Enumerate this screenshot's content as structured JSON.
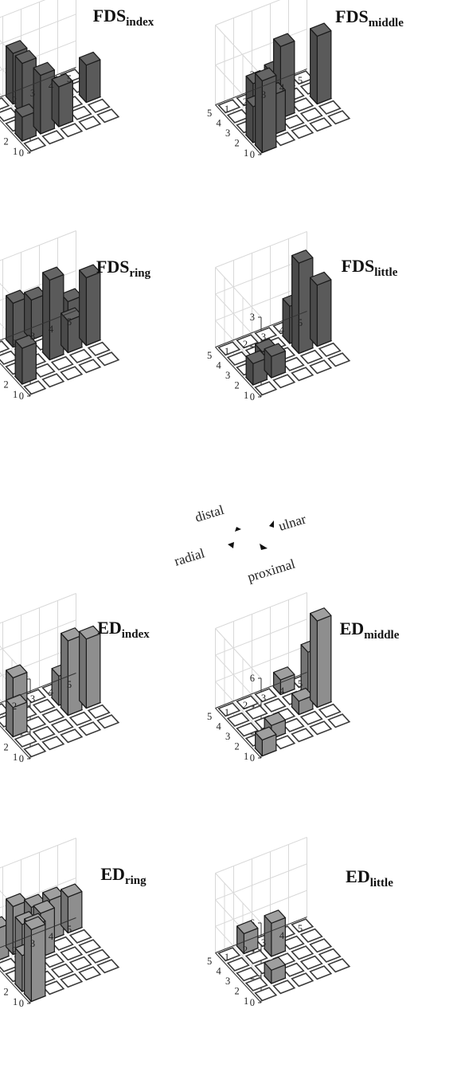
{
  "orientation": {
    "distal": "distal",
    "ulnar": "ulnar",
    "radial": "radial",
    "proximal": "proximal"
  },
  "chart_data": [
    {
      "type": "bar3d",
      "title": "FDS",
      "subtitle": "index",
      "ylim": [
        0,
        3
      ],
      "zticks": [
        "0",
        "1",
        "2",
        "3"
      ],
      "rows": [
        "1",
        "2",
        "3",
        "4",
        "5"
      ],
      "cols": [
        "1",
        "2",
        "3",
        "4",
        "5"
      ],
      "bar_color": "#5a5a5a",
      "values": [
        [
          0,
          0,
          0,
          0,
          0
        ],
        [
          0.9,
          2.2,
          1.5,
          0,
          0
        ],
        [
          0,
          0,
          0,
          0,
          1.4
        ],
        [
          0,
          1.9,
          0,
          0,
          0
        ],
        [
          0,
          1.9,
          0,
          0,
          0
        ]
      ]
    },
    {
      "type": "bar3d",
      "title": "FDS",
      "subtitle": "middle",
      "ylim": [
        0,
        2
      ],
      "zticks": [
        "0",
        "1",
        "2"
      ],
      "rows": [
        "1",
        "2",
        "3",
        "4",
        "5"
      ],
      "cols": [
        "1",
        "2",
        "3",
        "4",
        "5"
      ],
      "bar_color": "#5a5a5a",
      "values": [
        [
          1.8,
          0,
          0,
          0,
          0
        ],
        [
          0.9,
          1.0,
          0,
          0,
          0
        ],
        [
          0,
          1.1,
          1.8,
          0,
          1.7
        ],
        [
          0,
          0.8,
          0.9,
          0,
          0
        ],
        [
          0,
          0,
          0,
          0,
          0
        ]
      ]
    },
    {
      "type": "bar3d",
      "title": "FDS",
      "subtitle": "ring",
      "ylim": [
        0,
        2
      ],
      "zticks": [
        "0",
        "1",
        "2"
      ],
      "rows": [
        "1",
        "2",
        "3",
        "4",
        "5"
      ],
      "cols": [
        "1",
        "2",
        "3",
        "4",
        "5"
      ],
      "bar_color": "#5a5a5a",
      "values": [
        [
          0,
          0,
          0,
          0,
          0
        ],
        [
          0.9,
          0,
          0,
          0,
          0
        ],
        [
          0,
          0,
          2.0,
          0.8,
          1.7
        ],
        [
          0,
          0,
          0,
          0,
          0
        ],
        [
          0,
          1.1,
          1.0,
          0.8,
          0.6
        ]
      ]
    },
    {
      "type": "bar3d",
      "title": "FDS",
      "subtitle": "little",
      "ylim": [
        0,
        3
      ],
      "zticks": [
        "0",
        "1",
        "2",
        "3"
      ],
      "rows": [
        "1",
        "2",
        "3",
        "4",
        "5"
      ],
      "cols": [
        "1",
        "2",
        "3",
        "4",
        "5"
      ],
      "bar_color": "#5a5a5a",
      "values": [
        [
          0,
          0,
          0,
          0,
          0
        ],
        [
          0.8,
          0.8,
          0,
          0,
          0
        ],
        [
          0,
          0.6,
          0,
          3.4,
          2.3
        ],
        [
          0,
          0,
          0,
          1.4,
          1.4
        ],
        [
          0,
          0,
          0,
          0,
          0
        ]
      ]
    },
    {
      "type": "bar3d",
      "title": "ED",
      "subtitle": "index",
      "ylim": [
        0,
        3
      ],
      "zticks": [
        "0",
        "1",
        "2",
        "3"
      ],
      "rows": [
        "1",
        "2",
        "3",
        "4",
        "5"
      ],
      "cols": [
        "1",
        "2",
        "3",
        "4",
        "5"
      ],
      "bar_color": "#8e8e8e",
      "values": [
        [
          0,
          0,
          0,
          0,
          0
        ],
        [
          0,
          0,
          0,
          0,
          0
        ],
        [
          1.1,
          0,
          0,
          2.8,
          2.6
        ],
        [
          0,
          0,
          0,
          1.1,
          1.8
        ],
        [
          0,
          1.2,
          0,
          0,
          0
        ]
      ]
    },
    {
      "type": "bar3d",
      "title": "ED",
      "subtitle": "middle",
      "ylim": [
        0,
        6
      ],
      "zticks": [
        "0",
        "2",
        "4",
        "6"
      ],
      "rows": [
        "1",
        "2",
        "3",
        "4",
        "5"
      ],
      "cols": [
        "1",
        "2",
        "3",
        "4",
        "5"
      ],
      "bar_color": "#8e8e8e",
      "values": [
        [
          1.2,
          0,
          0,
          0,
          0
        ],
        [
          0,
          1.0,
          0,
          0,
          0
        ],
        [
          0,
          0,
          0,
          1.0,
          6.5
        ],
        [
          0,
          0,
          0,
          0,
          3.4
        ],
        [
          0,
          0,
          0,
          1.1,
          0
        ]
      ]
    },
    {
      "type": "bar3d",
      "title": "ED",
      "subtitle": "ring",
      "ylim": [
        0,
        2
      ],
      "zticks": [
        "0",
        "1",
        "2"
      ],
      "rows": [
        "1",
        "2",
        "3",
        "4",
        "5"
      ],
      "cols": [
        "1",
        "2",
        "3",
        "4",
        "5"
      ],
      "bar_color": "#8e8e8e",
      "values": [
        [
          1.8,
          0,
          0,
          0,
          0
        ],
        [
          0.9,
          0,
          0,
          0,
          0
        ],
        [
          0,
          1.2,
          0,
          0,
          0
        ],
        [
          0,
          1.0,
          1.1,
          0,
          0
        ],
        [
          0.8,
          1.2,
          1.0,
          1.0,
          0.9
        ]
      ]
    },
    {
      "type": "bar3d",
      "title": "ED",
      "subtitle": "little",
      "ylim": [
        0,
        6
      ],
      "zticks": [
        "0",
        "2",
        "4",
        "6"
      ],
      "rows": [
        "1",
        "2",
        "3",
        "4",
        "5"
      ],
      "cols": [
        "1",
        "2",
        "3",
        "4",
        "5"
      ],
      "bar_color": "#8e8e8e",
      "values": [
        [
          0,
          0,
          0,
          0,
          0
        ],
        [
          0,
          1.0,
          0,
          0,
          0
        ],
        [
          0,
          0,
          0,
          0,
          0
        ],
        [
          0,
          0,
          2.5,
          0,
          0
        ],
        [
          0,
          1.5,
          0,
          0,
          0
        ]
      ]
    }
  ]
}
